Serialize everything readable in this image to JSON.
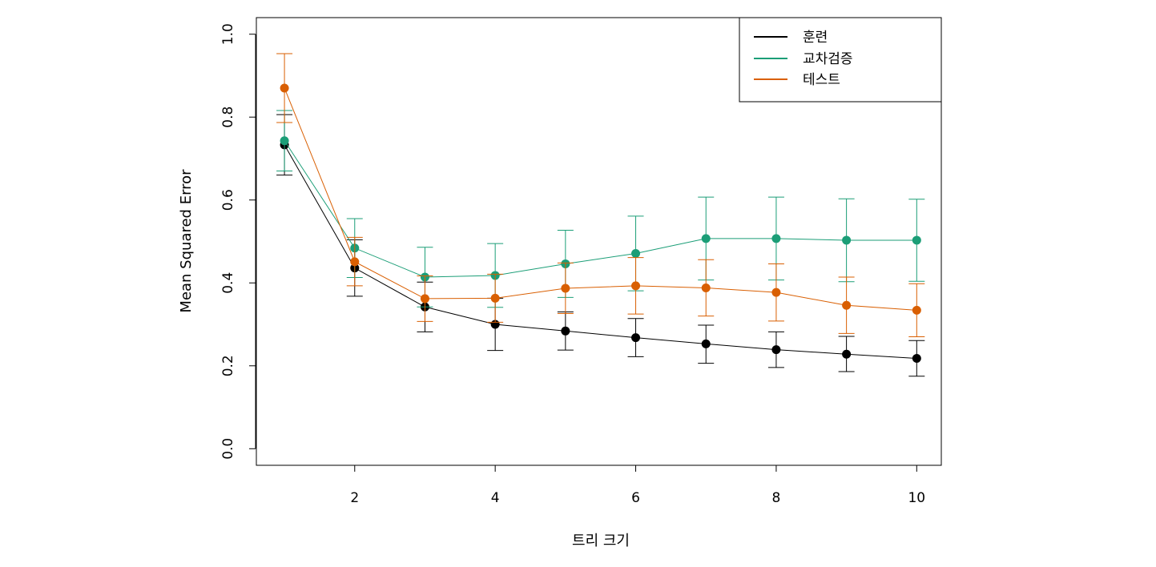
{
  "chart_data": {
    "type": "line",
    "title": "",
    "xlabel": "트리 크기",
    "ylabel": "Mean Squared Error",
    "xlim": [
      0.6,
      10.35
    ],
    "ylim": [
      -0.04,
      1.04
    ],
    "x_ticks": [
      2,
      4,
      6,
      8,
      10
    ],
    "y_ticks": [
      0.0,
      0.2,
      0.4,
      0.6,
      0.8,
      1.0
    ],
    "y_tick_labels": [
      "0.0",
      "0.2",
      "0.4",
      "0.6",
      "0.8",
      "1.0"
    ],
    "x_tick_labels": [
      "2",
      "4",
      "6",
      "8",
      "10"
    ],
    "grid": false,
    "legend_position": "top-right",
    "x": [
      1,
      2,
      3,
      4,
      5,
      6,
      7,
      8,
      9,
      10
    ],
    "series": [
      {
        "name": "훈련",
        "color": "#000000",
        "values": [
          0.733,
          0.436,
          0.342,
          0.3,
          0.284,
          0.268,
          0.253,
          0.239,
          0.228,
          0.218
        ],
        "lower": [
          0.66,
          0.368,
          0.282,
          0.237,
          0.238,
          0.222,
          0.206,
          0.196,
          0.186,
          0.175
        ],
        "upper": [
          0.806,
          0.504,
          0.402,
          0.363,
          0.33,
          0.314,
          0.298,
          0.282,
          0.271,
          0.261
        ]
      },
      {
        "name": "교차검증",
        "color": "#1b9e77",
        "values": [
          0.743,
          0.484,
          0.414,
          0.418,
          0.446,
          0.471,
          0.507,
          0.507,
          0.503,
          0.503
        ],
        "lower": [
          0.67,
          0.413,
          0.342,
          0.341,
          0.365,
          0.381,
          0.407,
          0.407,
          0.403,
          0.404
        ],
        "upper": [
          0.816,
          0.555,
          0.486,
          0.495,
          0.527,
          0.561,
          0.607,
          0.607,
          0.603,
          0.602
        ]
      },
      {
        "name": "테스트",
        "color": "#d95f02",
        "values": [
          0.87,
          0.451,
          0.362,
          0.363,
          0.387,
          0.393,
          0.388,
          0.377,
          0.346,
          0.334
        ],
        "lower": [
          0.787,
          0.393,
          0.307,
          0.305,
          0.326,
          0.325,
          0.32,
          0.308,
          0.278,
          0.27
        ],
        "upper": [
          0.953,
          0.51,
          0.417,
          0.421,
          0.448,
          0.461,
          0.456,
          0.446,
          0.414,
          0.398
        ]
      }
    ]
  }
}
